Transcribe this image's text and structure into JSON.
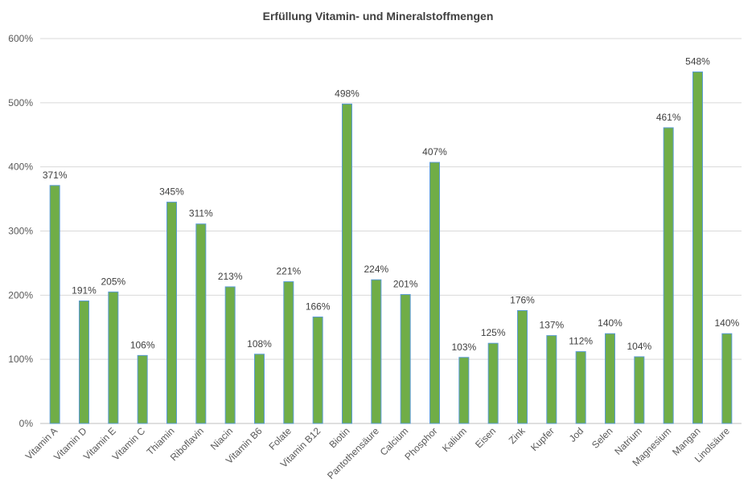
{
  "chart_data": {
    "type": "bar",
    "title": "Erfüllung Vitamin- und Mineralstoffmengen",
    "xlabel": "",
    "ylabel": "",
    "ylim": [
      0,
      600
    ],
    "yticks": [
      0,
      100,
      200,
      300,
      400,
      500,
      600
    ],
    "ytick_labels": [
      "0%",
      "100%",
      "200%",
      "300%",
      "400%",
      "500%",
      "600%"
    ],
    "grid": true,
    "legend": "none",
    "categories": [
      "Vitamin A",
      "Vitamin D",
      "Vitamin E",
      "Vitamin C",
      "Thiamin",
      "Riboflavin",
      "Niacin",
      "Vitamin B6",
      "Folate",
      "Vitamin B12",
      "Biotin",
      "Pantothensäure",
      "Calcium",
      "Phosphor",
      "Kalium",
      "Eisen",
      "Zink",
      "Kupfer",
      "Jod",
      "Selen",
      "Natrium",
      "Magnesium",
      "Mangan",
      "Linolsäure"
    ],
    "values": [
      371,
      191,
      205,
      106,
      345,
      311,
      213,
      108,
      221,
      166,
      498,
      224,
      201,
      407,
      103,
      125,
      176,
      137,
      112,
      140,
      104,
      461,
      548,
      140
    ],
    "data_labels": [
      "371%",
      "191%",
      "205%",
      "106%",
      "345%",
      "311%",
      "213%",
      "108%",
      "221%",
      "166%",
      "498%",
      "224%",
      "201%",
      "407%",
      "103%",
      "125%",
      "176%",
      "137%",
      "112%",
      "140%",
      "104%",
      "461%",
      "548%",
      "140%"
    ],
    "colors": {
      "bar_fill": "#70ad47",
      "bar_edge": "#5b9bd5"
    }
  }
}
